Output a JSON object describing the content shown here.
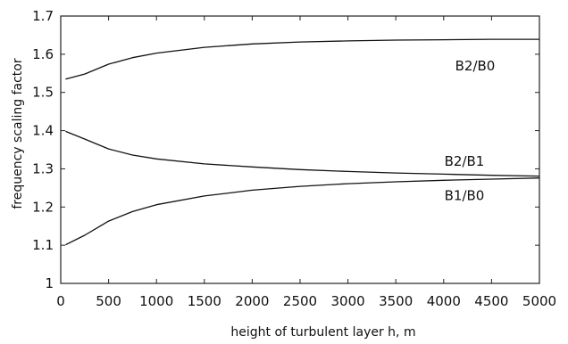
{
  "chart_data": {
    "type": "line",
    "xlabel": "height of turbulent layer h, m",
    "ylabel": "frequency scaling factor",
    "xlim": [
      0,
      5000
    ],
    "ylim": [
      1.0,
      1.7
    ],
    "xticks": [
      0,
      500,
      1000,
      1500,
      2000,
      2500,
      3000,
      3500,
      4000,
      4500,
      5000
    ],
    "yticks": [
      1,
      1.1,
      1.2,
      1.3,
      1.4,
      1.5,
      1.6,
      1.7
    ],
    "x": [
      50,
      250,
      500,
      750,
      1000,
      1500,
      2000,
      2500,
      3000,
      3500,
      4000,
      4500,
      5000
    ],
    "series": [
      {
        "name": "B2/B0",
        "values": [
          1.535,
          1.548,
          1.574,
          1.591,
          1.603,
          1.618,
          1.627,
          1.632,
          1.635,
          1.637,
          1.638,
          1.639,
          1.639
        ]
      },
      {
        "name": "B2/B1",
        "values": [
          1.398,
          1.378,
          1.352,
          1.336,
          1.326,
          1.313,
          1.305,
          1.298,
          1.293,
          1.289,
          1.286,
          1.283,
          1.281
        ]
      },
      {
        "name": "B1/B0",
        "values": [
          1.101,
          1.126,
          1.163,
          1.188,
          1.206,
          1.229,
          1.244,
          1.254,
          1.261,
          1.266,
          1.27,
          1.273,
          1.276
        ]
      }
    ],
    "grid": false,
    "legend": "inline labels at right"
  }
}
